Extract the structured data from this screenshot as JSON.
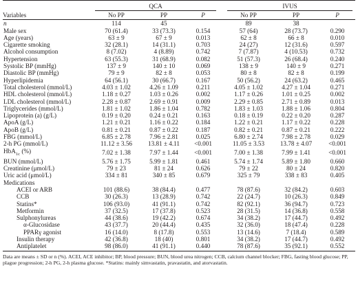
{
  "table": {
    "groups": [
      "QCA",
      "IVUS"
    ],
    "header": {
      "variables": "Variables",
      "columns": [
        "No PP",
        "PP",
        "P",
        "No PP",
        "PP",
        "P"
      ]
    },
    "rows": [
      {
        "label": "n",
        "italic": true,
        "cells": [
          "114",
          "45",
          "",
          "89",
          "38",
          ""
        ]
      },
      {
        "label": "Male sex",
        "cells": [
          "70 (61.4)",
          "33 (73.3)",
          "0.154",
          "57 (64)",
          "28 (73.7)",
          "0.290"
        ]
      },
      {
        "label": "Age (years)",
        "cells": [
          "63 ± 9",
          "67 ± 9",
          "0.013",
          "62 ± 8",
          "66 ± 8",
          "0.010"
        ]
      },
      {
        "label": "Cigarette smoking",
        "cells": [
          "32 (28.1)",
          "14 (31.1)",
          "0.703",
          "24 (27)",
          "12 (31.6)",
          "0.597"
        ]
      },
      {
        "label": "Alcohol consumption",
        "cells": [
          "8 (7.02)",
          "4 (8.89)",
          "0.742",
          "7 (7.87)",
          "4 (10.53)",
          "0.732"
        ]
      },
      {
        "label": "Hypertension",
        "cells": [
          "63 (55.3)",
          "31 (68.9)",
          "0.082",
          "51 (57.3)",
          "26 (68.4)",
          "0.240"
        ]
      },
      {
        "label": "Systolic BP (mmHg)",
        "cells": [
          "137 ± 9",
          "140 ± 10",
          "0.069",
          "138 ± 9",
          "140 ± 9",
          "0.271"
        ]
      },
      {
        "label": "Diastolic BP (mmHg)",
        "cells": [
          "79 ± 9",
          "82 ± 8",
          "0.053",
          "80 ± 8",
          "82 ± 8",
          "0.199"
        ]
      },
      {
        "label": "Hyperlipidemia",
        "cells": [
          "64 (56.1)",
          "30 (66.7)",
          "0.167",
          "50 (56.2)",
          "24 (63.2)",
          "0.465"
        ]
      },
      {
        "label": "Total cholesterol (mmol/L)",
        "cells": [
          "4.03 ± 1.02",
          "4.26 ± 1.09",
          "0.211",
          "4.05 ± 1.02",
          "4.27 ± 1.04",
          "0.271"
        ]
      },
      {
        "label": "HDL cholesterol (mmol/L)",
        "cells": [
          "1.18 ± 0.27",
          "1.03 ± 0.26",
          "0.002",
          "1.17 ± 0.26",
          "1.01 ± 0.25",
          "0.002"
        ]
      },
      {
        "label": "LDL cholesterol (mmol/L)",
        "cells": [
          "2.28 ± 0.87",
          "2.69 ± 0.91",
          "0.009",
          "2.29 ± 0.85",
          "2.71 ± 0.89",
          "0.013"
        ]
      },
      {
        "label": "Triglycerides (mmol/L)",
        "cells": [
          "1.81 ± 1.02",
          "1.86 ± 1.04",
          "0.782",
          "1.83 ± 1.03",
          "1.88 ± 1.06",
          "0.804"
        ]
      },
      {
        "label": "Lipoprotein (a) (g/L)",
        "cells": [
          "0.19 ± 0.20",
          "0.24 ± 0.21",
          "0.163",
          "0.18 ± 0.19",
          "0.22 ± 0.20",
          "0.287"
        ]
      },
      {
        "label": "ApoA (g/L)",
        "cells": [
          "1.21 ± 0.21",
          "1.16 ± 0.22",
          "0.184",
          "1.22 ± 0.21",
          "1.17 ± 0.22",
          "0.228"
        ]
      },
      {
        "label": "ApoB (g/L)",
        "cells": [
          "0.81 ± 0.21",
          "0.87 ± 0.22",
          "0.187",
          "0.82 ± 0.21",
          "0.87 ± 0.21",
          "0.222"
        ]
      },
      {
        "label": "FBG (mmol/L)",
        "cells": [
          "6.85 ± 2.78",
          "7.96 ± 2.81",
          "0.025",
          "6.80 ± 2.74",
          "7.98 ± 2.78",
          "0.029"
        ]
      },
      {
        "label": "2-h PG (mmol/L)",
        "cells": [
          "11.12 ± 3.56",
          "13.81 ± 4.11",
          "<0.001",
          "11.05 ± 3.53",
          "13.78 ± 4.07",
          "<0.001"
        ]
      },
      {
        "label_main": "HbA",
        "label_sub": "1c",
        "label_tail": " (%)",
        "cells": [
          "7.02 ± 1.38",
          "7.97 ± 1.44",
          "<0.001",
          "7.00 ± 1.38",
          "7.99 ± 1.41",
          "<0.001"
        ]
      },
      {
        "label": "BUN (mmol/L)",
        "cells": [
          "5.76 ± 1.75",
          "5.99 ± 1.81",
          "0.461",
          "5.74 ± 1.74",
          "5.89 ± 1.80",
          "0.660"
        ]
      },
      {
        "label": "Creatinine (μmol/L)",
        "cells": [
          "79 ± 23",
          "81 ± 24",
          "0.626",
          "79 ± 22",
          "80 ± 24",
          "0.820"
        ]
      },
      {
        "label": "Uric acid (μmol/L)",
        "cells": [
          "334 ± 81",
          "340 ± 85",
          "0.679",
          "325 ± 79",
          "338 ± 83",
          "0.405"
        ]
      },
      {
        "label": "Medications",
        "section": true,
        "cells": [
          "",
          "",
          "",
          "",
          "",
          ""
        ]
      },
      {
        "label": "ACEI or ARB",
        "indent": 1,
        "cells": [
          "101 (88.6)",
          "38 (84.4)",
          "0.477",
          "78 (87.6)",
          "32 (84.2)",
          "0.603"
        ]
      },
      {
        "label": "CCB",
        "indent": 1,
        "cells": [
          "30 (26.3)",
          "13 (28.9)",
          "0.742",
          "22 (24.7)",
          "10 (26.3)",
          "0.849"
        ]
      },
      {
        "label": "Statins*",
        "indent": 1,
        "cells": [
          "106 (93.0)",
          "41 (91.1)",
          "0.742",
          "82 (92.1)",
          "36 (94.7)",
          "0.723"
        ]
      },
      {
        "label": "Metformin",
        "indent": 1,
        "cells": [
          "37 (32.5)",
          "17 (37.8)",
          "0.523",
          "28 (31.5)",
          "14 (36.8)",
          "0.558"
        ]
      },
      {
        "label": "Sulphonylureas",
        "indent": 1,
        "cells": [
          "44 (38.6)",
          "19 (42.2)",
          "0.674",
          "34 (38.2)",
          "17 (44.7)",
          "0.492"
        ]
      },
      {
        "label": "α-Glucosidase",
        "indent": 2,
        "cells": [
          "43 (37.7)",
          "20 (44.4)",
          "0.435",
          "32 (36.0)",
          "18 (47.4)",
          "0.228"
        ]
      },
      {
        "label": "PPARγ agonist",
        "indent": 2,
        "cells": [
          "16 (14.0)",
          "8 (17.8)",
          "0.553",
          "13 (14.6)",
          "7 (18.4)",
          "0.589"
        ]
      },
      {
        "label": "Insulin therapy",
        "indent": 1,
        "cells": [
          "42 (36.8)",
          "18 (40)",
          "0.801",
          "34 (38.2)",
          "17 (44.7)",
          "0.492"
        ]
      },
      {
        "label": "Antiplatelet",
        "indent": 1,
        "cells": [
          "98 (86.0)",
          "41 (91.1)",
          "0.440",
          "78 (87.6)",
          "35 (92.1)",
          "0.552"
        ]
      }
    ]
  },
  "footnote": "Data are means ± SD or n (%). ACEI, ACE inhibitor; BP, blood pressure; BUN, blood urea nitrogen; CCB, calcium channel blocker; FBG, fasting blood glucose; PP, plague progression; 2-h PG, 2-h plasma glucose. *Statins: mainly simvastatin, pravastatin, and atorvastatin."
}
